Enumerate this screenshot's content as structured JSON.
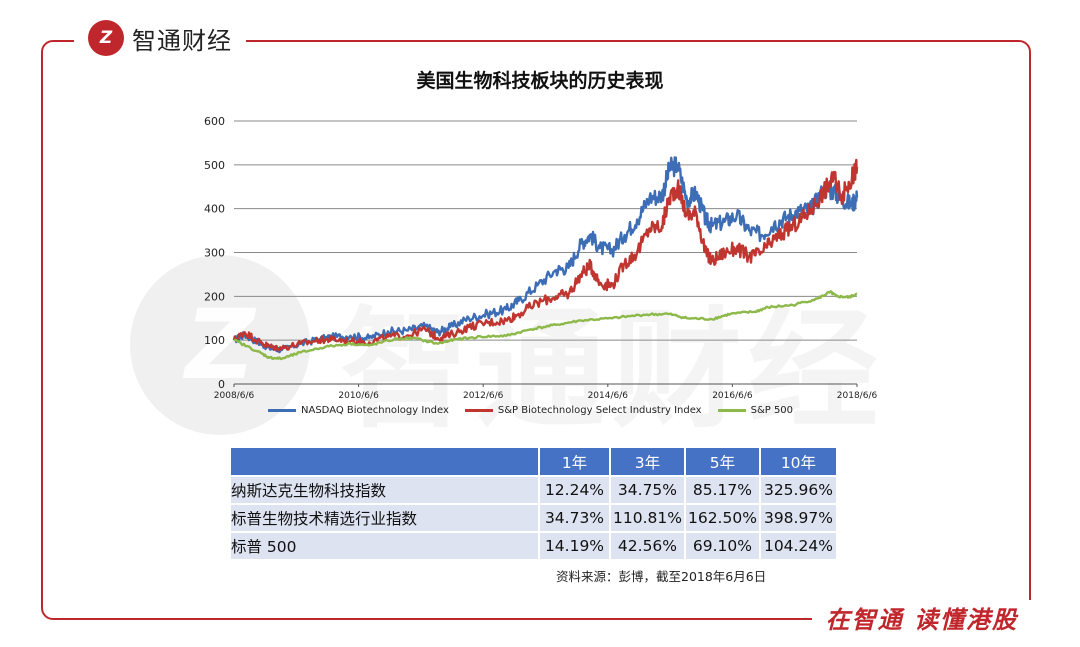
{
  "brand": {
    "logo_mark": "Z",
    "name": "智通财经"
  },
  "slogan": "在智通  读懂港股",
  "watermark": {
    "mark": "Z",
    "text": "智通财经"
  },
  "colors": {
    "frame": "#c0272d",
    "nasdaq": "#3d6db5",
    "sp_bio": "#c0352f",
    "sp500": "#8db94a",
    "table_header": "#4572c4",
    "table_row": "#dde3f1"
  },
  "chart_data": {
    "type": "line",
    "title": "美国生物科技板块的历史表现",
    "xlabel": "",
    "ylabel": "",
    "ylim": [
      0,
      600
    ],
    "yticks": [
      0,
      100,
      200,
      300,
      400,
      500,
      600
    ],
    "xlim": [
      2008.43,
      2018.43
    ],
    "xticks": [
      {
        "x": 2008.43,
        "label": "2008/6/6"
      },
      {
        "x": 2010.43,
        "label": "2010/6/6"
      },
      {
        "x": 2012.43,
        "label": "2012/6/6"
      },
      {
        "x": 2014.43,
        "label": "2014/6/6"
      },
      {
        "x": 2016.43,
        "label": "2016/6/6"
      },
      {
        "x": 2018.43,
        "label": "2018/6/6"
      }
    ],
    "grid": true,
    "legend_position": "bottom",
    "series": [
      {
        "name": "NASDAQ Biotechnology Index",
        "color": "#3d6db5",
        "x": [
          2008.43,
          2008.6,
          2008.85,
          2009.0,
          2009.2,
          2009.5,
          2009.8,
          2010.0,
          2010.3,
          2010.6,
          2010.9,
          2011.2,
          2011.5,
          2011.7,
          2011.9,
          2012.2,
          2012.5,
          2012.8,
          2013.0,
          2013.3,
          2013.6,
          2013.8,
          2014.0,
          2014.15,
          2014.3,
          2014.5,
          2014.7,
          2014.9,
          2015.1,
          2015.3,
          2015.42,
          2015.55,
          2015.7,
          2015.85,
          2016.0,
          2016.1,
          2016.3,
          2016.5,
          2016.7,
          2016.9,
          2017.1,
          2017.3,
          2017.5,
          2017.7,
          2017.9,
          2018.05,
          2018.2,
          2018.35,
          2018.43
        ],
        "y": [
          100,
          112,
          93,
          82,
          78,
          92,
          102,
          107,
          110,
          105,
          120,
          122,
          132,
          118,
          130,
          150,
          160,
          170,
          190,
          225,
          260,
          265,
          320,
          340,
          310,
          305,
          340,
          375,
          425,
          430,
          492,
          500,
          420,
          435,
          375,
          360,
          370,
          385,
          350,
          340,
          365,
          380,
          395,
          400,
          445,
          440,
          420,
          410,
          425
        ]
      },
      {
        "name": "S&P Biotechnology Select Industry Index",
        "color": "#c0352f",
        "x": [
          2008.43,
          2008.6,
          2008.85,
          2009.0,
          2009.2,
          2009.5,
          2009.8,
          2010.0,
          2010.3,
          2010.6,
          2010.9,
          2011.2,
          2011.5,
          2011.7,
          2011.9,
          2012.2,
          2012.5,
          2012.8,
          2013.0,
          2013.3,
          2013.6,
          2013.8,
          2014.0,
          2014.15,
          2014.3,
          2014.5,
          2014.7,
          2014.9,
          2015.1,
          2015.3,
          2015.42,
          2015.55,
          2015.7,
          2015.85,
          2016.0,
          2016.1,
          2016.3,
          2016.5,
          2016.7,
          2016.9,
          2017.1,
          2017.3,
          2017.5,
          2017.7,
          2017.9,
          2018.05,
          2018.2,
          2018.35,
          2018.43
        ],
        "y": [
          100,
          118,
          95,
          85,
          82,
          92,
          100,
          102,
          98,
          95,
          108,
          110,
          125,
          105,
          112,
          130,
          140,
          145,
          160,
          185,
          200,
          205,
          250,
          270,
          230,
          225,
          275,
          300,
          355,
          360,
          425,
          450,
          385,
          390,
          300,
          280,
          300,
          310,
          290,
          300,
          330,
          350,
          370,
          400,
          440,
          470,
          430,
          470,
          495
        ]
      },
      {
        "name": "S&P 500",
        "color": "#8db94a",
        "x": [
          2008.43,
          2008.8,
          2009.0,
          2009.2,
          2009.5,
          2009.9,
          2010.3,
          2010.6,
          2011.0,
          2011.3,
          2011.7,
          2012.0,
          2012.4,
          2012.8,
          2013.2,
          2013.6,
          2014.0,
          2014.5,
          2015.0,
          2015.4,
          2015.7,
          2016.1,
          2016.4,
          2016.8,
          2017.0,
          2017.4,
          2017.8,
          2018.0,
          2018.1,
          2018.3,
          2018.43
        ],
        "y": [
          100,
          75,
          60,
          58,
          72,
          85,
          92,
          88,
          102,
          105,
          92,
          102,
          108,
          110,
          125,
          135,
          145,
          150,
          158,
          160,
          150,
          148,
          160,
          165,
          175,
          180,
          195,
          210,
          200,
          198,
          205
        ]
      }
    ]
  },
  "table": {
    "headers": [
      "",
      "1年",
      "3年",
      "5年",
      "10年"
    ],
    "rows": [
      {
        "name": "纳斯达克生物科技指数",
        "values": [
          "12.24%",
          "34.75%",
          "85.17%",
          "325.96%"
        ]
      },
      {
        "name": "标普生物技术精选行业指数",
        "values": [
          "34.73%",
          "110.81%",
          "162.50%",
          "398.97%"
        ]
      },
      {
        "name": "标普 500",
        "values": [
          "14.19%",
          "42.56%",
          "69.10%",
          "104.24%"
        ]
      }
    ]
  },
  "source": "资料来源：彭博，截至2018年6月6日"
}
